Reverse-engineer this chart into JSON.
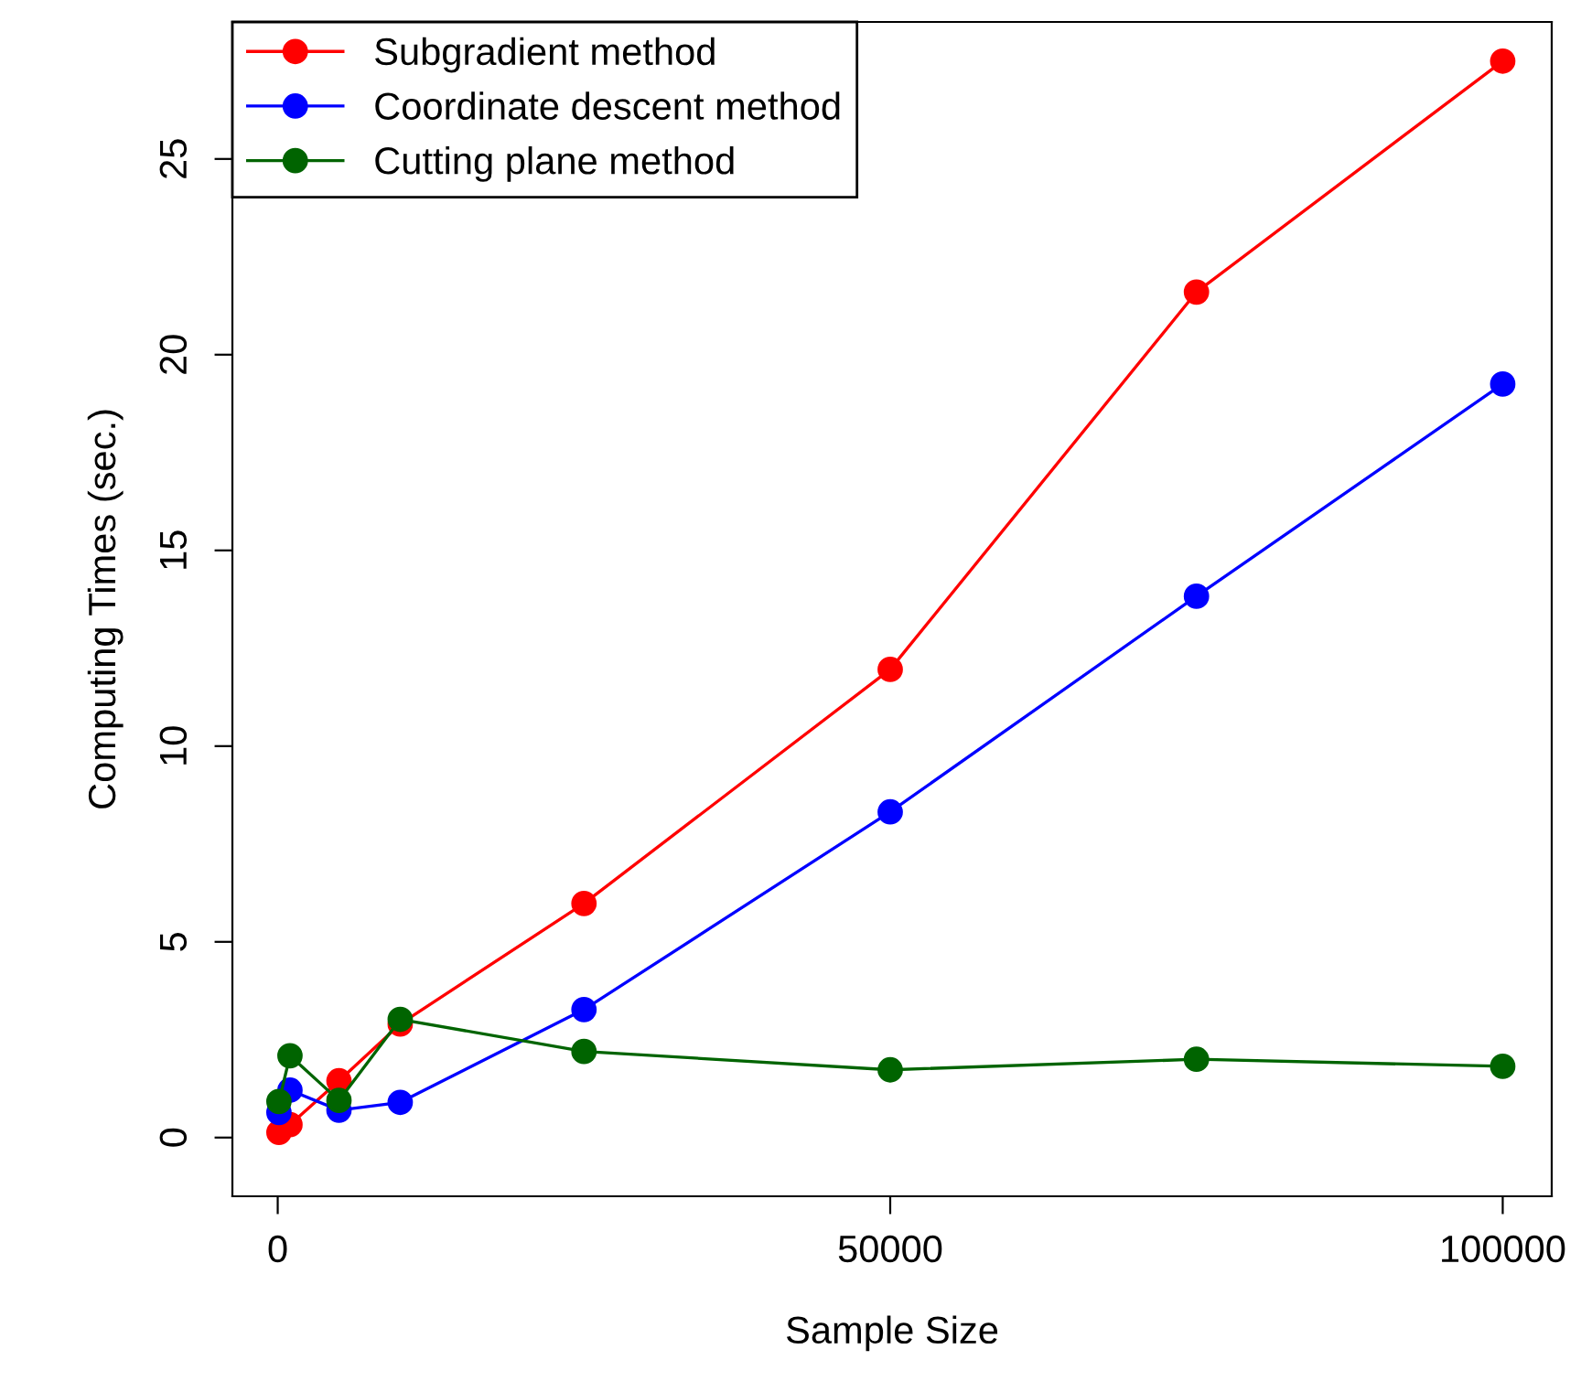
{
  "chart_data": {
    "type": "line",
    "xlabel": "Sample Size",
    "ylabel": "Computing Times (sec.)",
    "x": [
      100,
      1000,
      5000,
      10000,
      25000,
      50000,
      75000,
      100000
    ],
    "series": [
      {
        "name": "Subgradient method",
        "color": "#ff0000",
        "values": [
          0.13,
          0.33,
          1.45,
          2.9,
          5.98,
          11.96,
          21.6,
          27.5
        ]
      },
      {
        "name": "Coordinate descent method",
        "color": "#0000ff",
        "values": [
          0.64,
          1.21,
          0.7,
          0.9,
          3.27,
          8.32,
          13.83,
          19.25
        ]
      },
      {
        "name": "Cutting plane method",
        "color": "#006400",
        "values": [
          0.92,
          2.09,
          0.95,
          3.02,
          2.2,
          1.73,
          2.0,
          1.82
        ]
      }
    ],
    "xlim": [
      -3700,
      104000
    ],
    "ylim": [
      -1.5,
      28.5
    ],
    "xticks": [
      0,
      50000,
      100000
    ],
    "yticks": [
      0,
      5,
      10,
      15,
      20,
      25
    ],
    "marker": "circle",
    "line_style": "solid",
    "grid": false,
    "legend": "top left"
  }
}
